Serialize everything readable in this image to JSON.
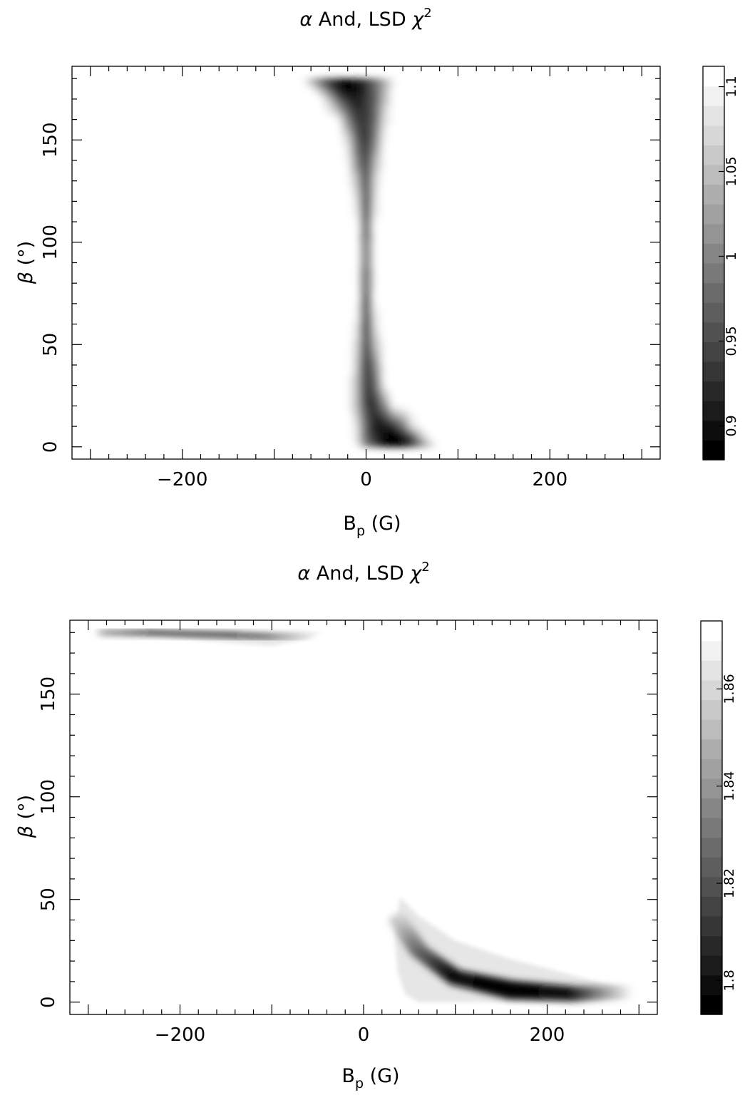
{
  "figure": {
    "panels": [
      {
        "title": {
          "greek": "α",
          "text": " And, LSD ",
          "chi": "χ",
          "sup": "2"
        },
        "xlabel": {
          "main": "B",
          "sub": "p",
          "unit": " (G)"
        },
        "ylabel": {
          "greek": "β",
          "unit": " (°)"
        },
        "colorbar": {
          "range": [
            0.88,
            1.112
          ],
          "ticks": [
            "0.9",
            "0.95",
            "1",
            "1.05",
            "1.1"
          ],
          "tick_values": [
            0.9,
            0.95,
            1.0,
            1.05,
            1.1
          ],
          "levels": 20
        }
      },
      {
        "title": {
          "greek": "α",
          "text": " And, LSD ",
          "chi": "χ",
          "sup": "2"
        },
        "xlabel": {
          "main": "B",
          "sub": "p",
          "unit": " (G)"
        },
        "ylabel": {
          "greek": "β",
          "unit": " (°)"
        },
        "colorbar": {
          "range": [
            1.793,
            1.874
          ],
          "ticks": [
            "1.8",
            "1.82",
            "1.84",
            "1.86"
          ],
          "tick_values": [
            1.8,
            1.82,
            1.84,
            1.86
          ],
          "levels": 20
        }
      }
    ]
  },
  "chart_data": [
    {
      "type": "heatmap",
      "title": "α And, LSD χ2",
      "xlabel": "Bp (G)",
      "ylabel": "β (°)",
      "xlim": [
        -320,
        320
      ],
      "ylim": [
        -6,
        186
      ],
      "xticks": [
        -200,
        0,
        200
      ],
      "yticks": [
        0,
        50,
        100,
        150
      ],
      "xtick_labels": [
        "−200",
        "0",
        "200"
      ],
      "ytick_labels": [
        "0",
        "50",
        "100",
        "150"
      ],
      "colormap": "grayscale (dark = low χ2)",
      "colorbar_range": [
        0.88,
        1.112
      ],
      "data_extent": {
        "x": [
          -80,
          80
        ],
        "y": [
          0,
          180
        ]
      },
      "minima": [
        {
          "x": -20,
          "y": 175,
          "chi2": 0.88
        },
        {
          "x": 25,
          "y": 3,
          "chi2": 0.88
        }
      ],
      "z_grid": {
        "y": [
          0,
          5,
          10,
          20,
          30,
          40,
          50,
          60,
          70,
          80,
          90,
          100,
          110,
          120,
          130,
          140,
          150,
          160,
          170,
          175,
          180
        ],
        "x": [
          -80,
          -70,
          -60,
          -50,
          -40,
          -30,
          -20,
          -10,
          0,
          10,
          20,
          30,
          40,
          50,
          60,
          70,
          80
        ],
        "z": [
          [
            1.112,
            1.112,
            1.112,
            1.112,
            1.112,
            1.112,
            1.112,
            1.1,
            1.0,
            0.95,
            0.9,
            0.88,
            0.89,
            0.92,
            0.98,
            1.05,
            1.112
          ],
          [
            1.112,
            1.112,
            1.112,
            1.112,
            1.112,
            1.112,
            1.112,
            1.08,
            0.97,
            0.92,
            0.89,
            0.88,
            0.9,
            0.95,
            1.05,
            1.112,
            1.112
          ],
          [
            1.112,
            1.112,
            1.112,
            1.112,
            1.112,
            1.112,
            1.112,
            1.08,
            0.97,
            0.91,
            0.9,
            0.92,
            0.98,
            1.08,
            1.112,
            1.112,
            1.112
          ],
          [
            1.112,
            1.112,
            1.112,
            1.112,
            1.112,
            1.112,
            1.112,
            1.05,
            0.94,
            0.93,
            1.0,
            1.1,
            1.112,
            1.112,
            1.112,
            1.112,
            1.112
          ],
          [
            1.112,
            1.112,
            1.112,
            1.112,
            1.112,
            1.112,
            1.112,
            1.05,
            0.93,
            0.97,
            1.1,
            1.112,
            1.112,
            1.112,
            1.112,
            1.112,
            1.112
          ],
          [
            1.112,
            1.112,
            1.112,
            1.112,
            1.112,
            1.112,
            1.112,
            1.06,
            0.93,
            1.0,
            1.112,
            1.112,
            1.112,
            1.112,
            1.112,
            1.112,
            1.112
          ],
          [
            1.112,
            1.112,
            1.112,
            1.112,
            1.112,
            1.112,
            1.112,
            1.07,
            0.94,
            1.05,
            1.112,
            1.112,
            1.112,
            1.112,
            1.112,
            1.112,
            1.112
          ],
          [
            1.112,
            1.112,
            1.112,
            1.112,
            1.112,
            1.112,
            1.112,
            1.09,
            0.94,
            1.08,
            1.112,
            1.112,
            1.112,
            1.112,
            1.112,
            1.112,
            1.112
          ],
          [
            1.112,
            1.112,
            1.112,
            1.112,
            1.112,
            1.112,
            1.112,
            1.1,
            0.95,
            1.1,
            1.112,
            1.112,
            1.112,
            1.112,
            1.112,
            1.112,
            1.112
          ],
          [
            1.112,
            1.112,
            1.112,
            1.112,
            1.112,
            1.112,
            1.112,
            1.112,
            0.96,
            1.112,
            1.112,
            1.112,
            1.112,
            1.112,
            1.112,
            1.112,
            1.112
          ],
          [
            1.112,
            1.112,
            1.112,
            1.112,
            1.112,
            1.112,
            1.112,
            1.112,
            0.97,
            1.112,
            1.112,
            1.112,
            1.112,
            1.112,
            1.112,
            1.112,
            1.112
          ],
          [
            1.112,
            1.112,
            1.112,
            1.112,
            1.112,
            1.112,
            1.112,
            1.112,
            0.97,
            1.112,
            1.112,
            1.112,
            1.112,
            1.112,
            1.112,
            1.112,
            1.112
          ],
          [
            1.112,
            1.112,
            1.112,
            1.112,
            1.112,
            1.112,
            1.112,
            1.1,
            0.96,
            1.1,
            1.112,
            1.112,
            1.112,
            1.112,
            1.112,
            1.112,
            1.112
          ],
          [
            1.112,
            1.112,
            1.112,
            1.112,
            1.112,
            1.112,
            1.112,
            1.08,
            0.95,
            1.08,
            1.112,
            1.112,
            1.112,
            1.112,
            1.112,
            1.112,
            1.112
          ],
          [
            1.112,
            1.112,
            1.112,
            1.112,
            1.112,
            1.112,
            1.112,
            1.05,
            0.95,
            1.07,
            1.112,
            1.112,
            1.112,
            1.112,
            1.112,
            1.112,
            1.112
          ],
          [
            1.112,
            1.112,
            1.112,
            1.112,
            1.112,
            1.112,
            1.1,
            1.0,
            0.94,
            1.04,
            1.112,
            1.112,
            1.112,
            1.112,
            1.112,
            1.112,
            1.112
          ],
          [
            1.112,
            1.112,
            1.112,
            1.112,
            1.112,
            1.112,
            1.08,
            0.97,
            0.93,
            1.0,
            1.1,
            1.112,
            1.112,
            1.112,
            1.112,
            1.112,
            1.112
          ],
          [
            1.112,
            1.112,
            1.112,
            1.112,
            1.112,
            1.1,
            1.0,
            0.94,
            0.93,
            0.98,
            1.08,
            1.112,
            1.112,
            1.112,
            1.112,
            1.112,
            1.112
          ],
          [
            1.112,
            1.112,
            1.112,
            1.112,
            1.06,
            0.97,
            0.92,
            0.91,
            0.93,
            0.97,
            1.05,
            1.112,
            1.112,
            1.112,
            1.112,
            1.112,
            1.112
          ],
          [
            1.112,
            1.112,
            1.112,
            1.05,
            0.96,
            0.91,
            0.89,
            0.9,
            0.93,
            0.98,
            1.04,
            1.1,
            1.112,
            1.112,
            1.112,
            1.112,
            1.112
          ],
          [
            1.112,
            1.1,
            1.02,
            0.95,
            0.91,
            0.89,
            0.88,
            0.9,
            0.93,
            0.98,
            1.04,
            1.1,
            1.112,
            1.112,
            1.112,
            1.112,
            1.112
          ]
        ]
      }
    },
    {
      "type": "heatmap",
      "title": "α And, LSD χ2",
      "xlabel": "Bp (G)",
      "ylabel": "β (°)",
      "xlim": [
        -320,
        320
      ],
      "ylim": [
        -6,
        186
      ],
      "xticks": [
        -200,
        0,
        200
      ],
      "yticks": [
        0,
        50,
        100,
        150
      ],
      "xtick_labels": [
        "−200",
        "0",
        "200"
      ],
      "ytick_labels": [
        "0",
        "50",
        "100",
        "150"
      ],
      "colormap": "grayscale (dark = low χ2)",
      "colorbar_range": [
        1.793,
        1.874
      ],
      "data_extent": {
        "x": [
          -280,
          300
        ],
        "y": [
          0,
          180
        ]
      },
      "minima": [
        {
          "x": 160,
          "y": 6,
          "chi2": 1.793
        },
        {
          "x": -150,
          "y": 179,
          "chi2": 1.793
        }
      ],
      "regions": [
        {
          "name": "upper-left minimum",
          "ridge": [
            {
              "x": -280,
              "y": 180,
              "chi2": 1.83
            },
            {
              "x": -230,
              "y": 180,
              "chi2": 1.8
            },
            {
              "x": -150,
              "y": 179,
              "chi2": 1.793
            },
            {
              "x": -100,
              "y": 178,
              "chi2": 1.81
            },
            {
              "x": -45,
              "y": 178,
              "chi2": 1.874
            }
          ],
          "outline": [
            [
              -280,
              180
            ],
            [
              -45,
              180
            ],
            [
              -60,
              177
            ],
            [
              -100,
              173.5
            ],
            [
              -160,
              175.5
            ],
            [
              -230,
              178.5
            ],
            [
              -280,
              179.5
            ]
          ]
        },
        {
          "name": "lower-right minimum",
          "ridge": [
            {
              "x": 38,
              "y": 40,
              "chi2": 1.86
            },
            {
              "x": 60,
              "y": 25,
              "chi2": 1.83
            },
            {
              "x": 100,
              "y": 12,
              "chi2": 1.8
            },
            {
              "x": 160,
              "y": 6,
              "chi2": 1.793
            },
            {
              "x": 230,
              "y": 4,
              "chi2": 1.8
            },
            {
              "x": 300,
              "y": 5,
              "chi2": 1.874
            }
          ],
          "outline": [
            [
              40,
              51
            ],
            [
              60,
              42
            ],
            [
              100,
              30
            ],
            [
              160,
              21
            ],
            [
              220,
              14
            ],
            [
              270,
              8
            ],
            [
              298,
              5
            ],
            [
              280,
              2
            ],
            [
              200,
              0
            ],
            [
              120,
              0
            ],
            [
              60,
              0
            ],
            [
              45,
              4
            ],
            [
              37,
              15
            ],
            [
              34,
              30
            ],
            [
              37,
              44
            ]
          ]
        }
      ]
    }
  ]
}
